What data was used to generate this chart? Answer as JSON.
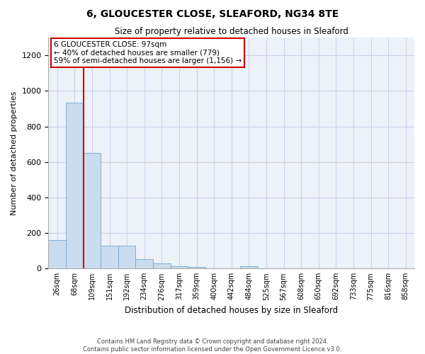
{
  "title": "6, GLOUCESTER CLOSE, SLEAFORD, NG34 8TE",
  "subtitle": "Size of property relative to detached houses in Sleaford",
  "xlabel": "Distribution of detached houses by size in Sleaford",
  "ylabel": "Number of detached properties",
  "footer_line1": "Contains HM Land Registry data © Crown copyright and database right 2024.",
  "footer_line2": "Contains public sector information licensed under the Open Government Licence v3.0.",
  "bar_labels": [
    "26sqm",
    "68sqm",
    "109sqm",
    "151sqm",
    "192sqm",
    "234sqm",
    "276sqm",
    "317sqm",
    "359sqm",
    "400sqm",
    "442sqm",
    "484sqm",
    "525sqm",
    "567sqm",
    "608sqm",
    "650sqm",
    "692sqm",
    "733sqm",
    "775sqm",
    "816sqm",
    "858sqm"
  ],
  "bar_values": [
    160,
    935,
    650,
    130,
    130,
    55,
    30,
    12,
    10,
    0,
    0,
    12,
    0,
    0,
    0,
    0,
    0,
    0,
    0,
    0,
    0
  ],
  "bar_color": "#c9dcf0",
  "bar_edge_color": "#6fa8d0",
  "grid_color": "#c8d4e8",
  "background_color": "#edf2f9",
  "annotation_text": "6 GLOUCESTER CLOSE: 97sqm\n← 40% of detached houses are smaller (779)\n59% of semi-detached houses are larger (1,156) →",
  "annotation_box_color": "#ffffff",
  "annotation_border_color": "#cc0000",
  "vline_x": 1.5,
  "vline_color": "#cc0000",
  "ylim": [
    0,
    1300
  ],
  "yticks": [
    0,
    200,
    400,
    600,
    800,
    1000,
    1200
  ]
}
